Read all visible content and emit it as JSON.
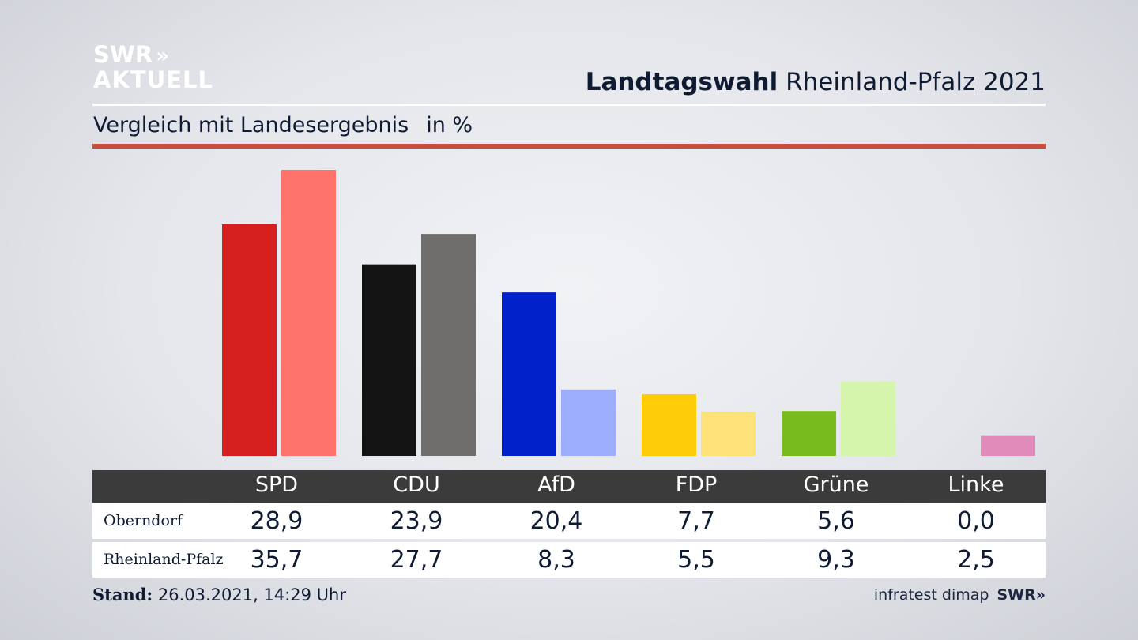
{
  "logo": {
    "line1": "SWR",
    "line1_chevrons": "»",
    "line2": "AKTUELL"
  },
  "title": {
    "bold": "Landtagswahl",
    "rest": " Rheinland-Pfalz 2021"
  },
  "subtitle": {
    "text": "Vergleich mit Landesergebnis",
    "unit": "in %"
  },
  "colors": {
    "accent_rule": "#cc4b3c",
    "table_header_bg": "#3b3b3b"
  },
  "chart_data": {
    "type": "bar",
    "categories": [
      "SPD",
      "CDU",
      "AfD",
      "FDP",
      "Grüne",
      "Linke"
    ],
    "series": [
      {
        "name": "Oberndorf",
        "values": [
          28.9,
          23.9,
          20.4,
          7.7,
          5.6,
          0.0
        ],
        "colors": [
          "#d62020",
          "#141414",
          "#0021c9",
          "#ffcc0a",
          "#78bb1e",
          "#c94fa0"
        ]
      },
      {
        "name": "Rheinland-Pfalz",
        "values": [
          35.7,
          27.7,
          8.3,
          5.5,
          9.3,
          2.5
        ],
        "colors": [
          "#ff736d",
          "#6f6e6c",
          "#9cadfb",
          "#fde27a",
          "#d6f5ac",
          "#e08bba"
        ]
      }
    ],
    "ylim": [
      0,
      35.7
    ],
    "grid": false,
    "legend": "table below chart"
  },
  "table": {
    "headers": [
      "SPD",
      "CDU",
      "AfD",
      "FDP",
      "Grüne",
      "Linke"
    ],
    "rows": [
      {
        "label": "Oberndorf",
        "values": [
          "28,9",
          "23,9",
          "20,4",
          "7,7",
          "5,6",
          "0,0"
        ]
      },
      {
        "label": "Rheinland-Pfalz",
        "values": [
          "35,7",
          "27,7",
          "8,3",
          "5,5",
          "9,3",
          "2,5"
        ]
      }
    ]
  },
  "footer": {
    "stand_label": "Stand:",
    "stand_value": " 26.03.2021, 14:29 Uhr",
    "source": "infratest dimap",
    "brand": "SWR",
    "brand_chevrons": "»"
  }
}
